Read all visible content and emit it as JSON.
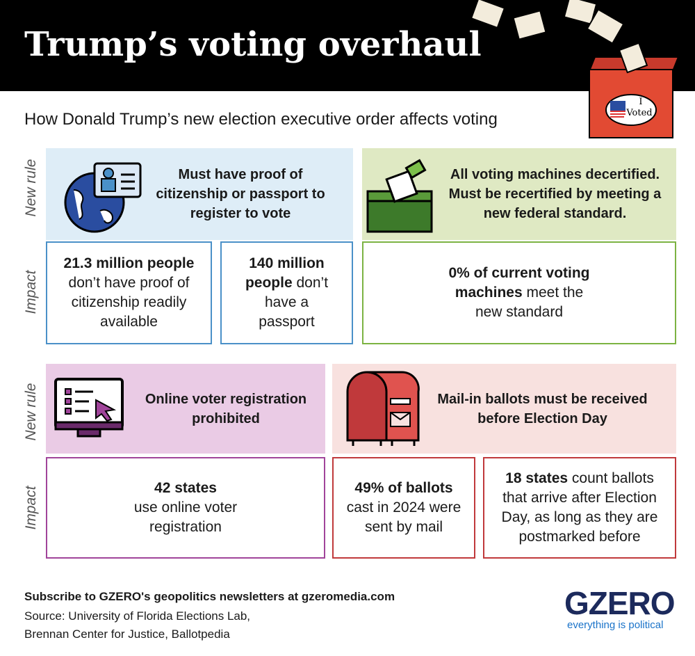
{
  "header": {
    "title": "Trump’s voting overhaul",
    "subtitle": "How Donald Trump’s new election executive order affects voting",
    "sticker": [
      "I",
      "Voted"
    ]
  },
  "sections": [
    {
      "rule_label": "New rule",
      "impact_label": "Impact",
      "rules": [
        {
          "text": "Must have proof of citizenship or passport to register to vote",
          "impacts": [
            {
              "bold": "21.3 million people",
              "text": "don’t have proof of citizenship readily available"
            },
            {
              "bold": "140 million people",
              "text": "don’t have a passport"
            }
          ]
        },
        {
          "text": "All voting machines decertified. Must be recertified by meeting a new federal standard.",
          "impacts": [
            {
              "bold": "0% of current voting machines",
              "text": "meet the new standard"
            }
          ]
        }
      ]
    },
    {
      "rule_label": "New rule",
      "impact_label": "Impact",
      "rules": [
        {
          "text": "Online voter registration prohibited",
          "impacts": [
            {
              "bold": "42 states",
              "text": "use online voter registration"
            }
          ]
        },
        {
          "text": "Mail-in ballots must be received before Election Day",
          "impacts": [
            {
              "bold": "49% of ballots",
              "text": "cast in 2024 were sent by mail"
            },
            {
              "bold": "18 states",
              "text": "count ballots that arrive after Election Day, as long as they are postmarked before"
            }
          ]
        }
      ]
    }
  ],
  "footer": {
    "subscribe": "Subscribe to GZERO's geopolitics newsletters at gzeromedia.com",
    "source": [
      "Source: University of Florida Elections Lab,",
      "Brennan Center for Justice, Ballotpedia"
    ],
    "logo": "GZERO",
    "tagline": "everything is political"
  }
}
